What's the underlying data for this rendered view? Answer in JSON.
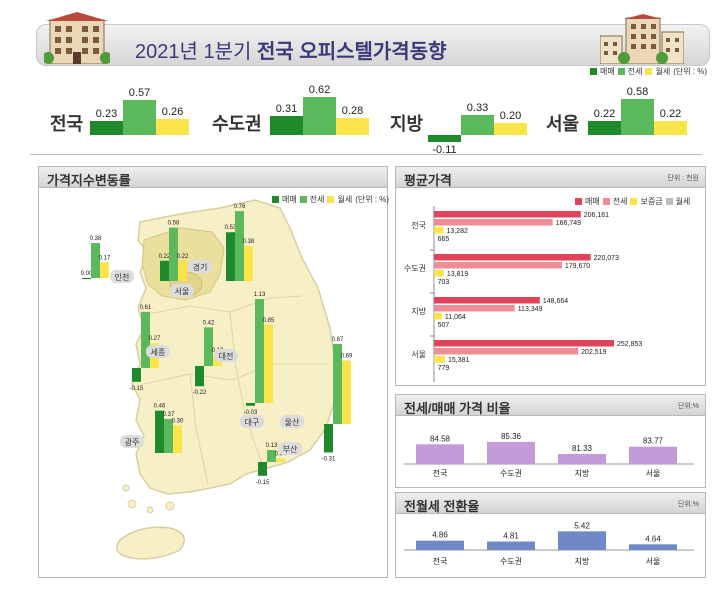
{
  "header": {
    "title_light": "2021년 1분기 ",
    "title_bold": "전국 오피스텔가격동향"
  },
  "legend_top": {
    "labels": [
      "매매",
      "전세",
      "월세"
    ],
    "unit": "(단위 : %)"
  },
  "colors": {
    "sale": "#1f8a2c",
    "jeonse": "#5cb85c",
    "wolse": "#fbe44a",
    "avg_sale": "#e0445a",
    "avg_jeonse": "#f08c96",
    "avg_deposit": "#fbe44a",
    "avg_wolse": "#bdbdbd",
    "ratio": "#c29bd8",
    "conv": "#6f88c8"
  },
  "summary": [
    {
      "region": "전국",
      "values": [
        0.23,
        0.57,
        0.26
      ],
      "labels": [
        "0.23",
        "0.57",
        "0.26"
      ]
    },
    {
      "region": "수도권",
      "values": [
        0.31,
        0.62,
        0.28
      ],
      "labels": [
        "0.31",
        "0.62",
        "0.28"
      ]
    },
    {
      "region": "지방",
      "values": [
        -0.11,
        0.33,
        0.2
      ],
      "labels": [
        "-0.11",
        "0.33",
        "0.20"
      ]
    },
    {
      "region": "서울",
      "values": [
        0.22,
        0.58,
        0.22
      ],
      "labels": [
        "0.22",
        "0.58",
        "0.22"
      ]
    }
  ],
  "map_panel": {
    "title": "가격지수변동률",
    "legend": [
      "매매",
      "전세",
      "월세"
    ],
    "unit": "(단위 : %)",
    "regions": [
      {
        "name": "인천",
        "values": [
          0.0,
          0.38,
          0.17
        ],
        "labels": [
          "0.00",
          "0.38",
          "0.17"
        ]
      },
      {
        "name": "서울",
        "values": [
          0.22,
          0.58,
          0.22
        ],
        "labels": [
          "0.22",
          "0.58",
          "0.22"
        ]
      },
      {
        "name": "경기",
        "values": [
          0.53,
          0.76,
          0.38
        ],
        "labels": [
          "0.53",
          "0.76",
          "0.38"
        ]
      },
      {
        "name": "세종",
        "values": [
          -0.15,
          0.61,
          0.27
        ],
        "labels": [
          "-0.15",
          "0.61",
          "0.27"
        ]
      },
      {
        "name": "대전",
        "values": [
          -0.22,
          0.42,
          0.12
        ],
        "labels": [
          "-0.22",
          "0.42",
          "0.12"
        ]
      },
      {
        "name": "대구",
        "values": [
          -0.03,
          1.13,
          0.85
        ],
        "labels": [
          "-0.03",
          "1.13",
          "0.85"
        ]
      },
      {
        "name": "울산",
        "values": [
          -0.31,
          0.87,
          0.69
        ],
        "labels": [
          "-0.31",
          "0.87",
          "0.69"
        ]
      },
      {
        "name": "광주",
        "values": [
          0.46,
          0.37,
          0.3
        ],
        "labels": [
          "0.46",
          "0.37",
          "0.30"
        ]
      },
      {
        "name": "부산",
        "values": [
          -0.15,
          0.13,
          0.04
        ],
        "labels": [
          "-0.15",
          "0.13",
          "0.04"
        ]
      }
    ]
  },
  "avg_panel": {
    "title": "평균가격",
    "unit": "단위 : 천원",
    "legend": [
      "매매",
      "전세",
      "보증금",
      "월세"
    ],
    "rows": [
      {
        "region": "전국",
        "values": [
          206161,
          166749,
          13282,
          665
        ],
        "labels": [
          "206,161",
          "166,749",
          "13,282",
          "665"
        ]
      },
      {
        "region": "수도권",
        "values": [
          220073,
          179670,
          13819,
          703
        ],
        "labels": [
          "220,073",
          "179,670",
          "13,819",
          "703"
        ]
      },
      {
        "region": "지방",
        "values": [
          148664,
          113349,
          11064,
          507
        ],
        "labels": [
          "148,664",
          "113,349",
          "11,064",
          "507"
        ]
      },
      {
        "region": "서울",
        "values": [
          252853,
          202519,
          15381,
          779
        ],
        "labels": [
          "252,853",
          "202,519",
          "15,381",
          "779"
        ]
      }
    ]
  },
  "ratio_panel": {
    "title": "전세/매매 가격 비율",
    "unit": "단위:%",
    "categories": [
      "전국",
      "수도권",
      "지방",
      "서울"
    ],
    "values": [
      84.58,
      85.36,
      81.33,
      83.77
    ],
    "labels": [
      "84.58",
      "85.36",
      "81.33",
      "83.77"
    ]
  },
  "conv_panel": {
    "title": "전월세 전환율",
    "unit": "단위:%",
    "categories": [
      "전국",
      "수도권",
      "지방",
      "서울"
    ],
    "values": [
      4.86,
      4.81,
      5.42,
      4.64
    ],
    "labels": [
      "4.86",
      "4.81",
      "5.42",
      "4.64"
    ]
  },
  "chart_data": [
    {
      "type": "bar",
      "title": "",
      "categories": [
        "전국",
        "수도권",
        "지방",
        "서울"
      ],
      "series": [
        {
          "name": "매매",
          "values": [
            0.23,
            0.31,
            -0.11,
            0.22
          ]
        },
        {
          "name": "전세",
          "values": [
            0.57,
            0.62,
            0.33,
            0.58
          ]
        },
        {
          "name": "월세",
          "values": [
            0.26,
            0.28,
            0.2,
            0.22
          ]
        }
      ]
    },
    {
      "type": "bar",
      "title": "가격지수변동률",
      "categories": [
        "인천",
        "서울",
        "경기",
        "세종",
        "대전",
        "대구",
        "울산",
        "광주",
        "부산"
      ],
      "series": [
        {
          "name": "매매",
          "values": [
            0.0,
            0.22,
            0.53,
            -0.15,
            -0.22,
            -0.03,
            -0.31,
            0.46,
            -0.15
          ]
        },
        {
          "name": "전세",
          "values": [
            0.38,
            0.58,
            0.76,
            0.61,
            0.42,
            1.13,
            0.87,
            0.37,
            0.13
          ]
        },
        {
          "name": "월세",
          "values": [
            0.17,
            0.22,
            0.38,
            0.27,
            0.12,
            0.85,
            0.69,
            0.3,
            0.04
          ]
        }
      ]
    },
    {
      "type": "bar",
      "title": "평균가격",
      "categories": [
        "전국",
        "수도권",
        "지방",
        "서울"
      ],
      "series": [
        {
          "name": "매매",
          "values": [
            206161,
            220073,
            148664,
            252853
          ]
        },
        {
          "name": "전세",
          "values": [
            166749,
            179670,
            113349,
            202519
          ]
        },
        {
          "name": "보증금",
          "values": [
            13282,
            13819,
            11064,
            15381
          ]
        },
        {
          "name": "월세",
          "values": [
            665,
            703,
            507,
            779
          ]
        }
      ]
    },
    {
      "type": "bar",
      "title": "전세/매매 가격 비율",
      "categories": [
        "전국",
        "수도권",
        "지방",
        "서울"
      ],
      "values": [
        84.58,
        85.36,
        81.33,
        83.77
      ]
    },
    {
      "type": "bar",
      "title": "전월세 전환율",
      "categories": [
        "전국",
        "수도권",
        "지방",
        "서울"
      ],
      "values": [
        4.86,
        4.81,
        5.42,
        4.64
      ]
    }
  ]
}
